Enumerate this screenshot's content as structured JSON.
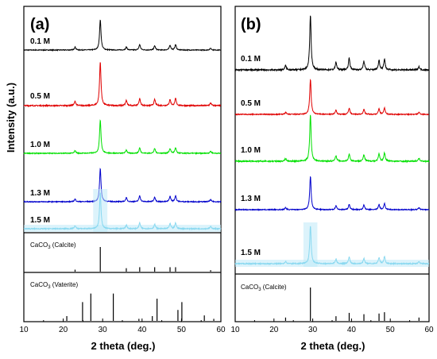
{
  "figure": {
    "ylabel": "Intensity (a.u.)",
    "xlabel": "2 theta (deg.)"
  },
  "chart_data": [
    {
      "type": "line",
      "panel": "(a)",
      "xlim": [
        10,
        60
      ],
      "xticks": [
        "10",
        "20",
        "30",
        "40",
        "50",
        "60"
      ],
      "xlabel": "2 theta (deg.)",
      "ylabel": "Intensity (a.u.)",
      "series": [
        {
          "name": "0.1 M",
          "color": "#000000",
          "peaks": [
            [
              23.0,
              0.1
            ],
            [
              29.4,
              1.0
            ],
            [
              36.0,
              0.1
            ],
            [
              39.4,
              0.18
            ],
            [
              43.2,
              0.14
            ],
            [
              47.1,
              0.16
            ],
            [
              48.5,
              0.18
            ],
            [
              57.4,
              0.06
            ]
          ]
        },
        {
          "name": "0.5 M",
          "color": "#e00000",
          "peaks": [
            [
              23.0,
              0.1
            ],
            [
              29.4,
              1.0
            ],
            [
              36.0,
              0.12
            ],
            [
              39.4,
              0.16
            ],
            [
              43.2,
              0.14
            ],
            [
              47.1,
              0.14
            ],
            [
              48.5,
              0.16
            ],
            [
              57.4,
              0.06
            ]
          ]
        },
        {
          "name": "1.0 M",
          "color": "#00e000",
          "peaks": [
            [
              23.0,
              0.08
            ],
            [
              29.4,
              1.0
            ],
            [
              36.0,
              0.1
            ],
            [
              39.4,
              0.16
            ],
            [
              43.2,
              0.14
            ],
            [
              47.1,
              0.14
            ],
            [
              48.5,
              0.16
            ],
            [
              57.4,
              0.06
            ]
          ]
        },
        {
          "name": "1.3 M",
          "color": "#0000cc",
          "peaks": [
            [
              23.0,
              0.08
            ],
            [
              29.4,
              1.0
            ],
            [
              36.0,
              0.12
            ],
            [
              39.4,
              0.18
            ],
            [
              43.2,
              0.14
            ],
            [
              47.1,
              0.16
            ],
            [
              48.5,
              0.18
            ],
            [
              57.4,
              0.06
            ]
          ]
        },
        {
          "name": "1.5 M",
          "color": "#88d8f0",
          "peaks": [
            [
              23.0,
              0.08
            ],
            [
              29.4,
              1.0
            ],
            [
              36.0,
              0.1
            ],
            [
              39.4,
              0.16
            ],
            [
              43.2,
              0.12
            ],
            [
              47.1,
              0.14
            ],
            [
              48.5,
              0.16
            ],
            [
              57.4,
              0.06
            ]
          ]
        }
      ],
      "references": [
        {
          "label": "CaCO3 (Calcite)",
          "lines": [
            [
              23.0,
              0.08
            ],
            [
              29.4,
              1.0
            ],
            [
              36.0,
              0.14
            ],
            [
              39.4,
              0.18
            ],
            [
              43.2,
              0.18
            ],
            [
              47.1,
              0.18
            ],
            [
              48.5,
              0.18
            ],
            [
              57.4,
              0.06
            ]
          ]
        },
        {
          "label": "CaCO3 (Vaterite)",
          "lines": [
            [
              20.9,
              0.14
            ],
            [
              24.9,
              0.55
            ],
            [
              27.0,
              0.8
            ],
            [
              32.7,
              0.8
            ],
            [
              39.2,
              0.06
            ],
            [
              42.6,
              0.14
            ],
            [
              43.8,
              0.65
            ],
            [
              49.1,
              0.32
            ],
            [
              50.1,
              0.55
            ],
            [
              55.8,
              0.16
            ],
            [
              58.2,
              0.06
            ]
          ]
        }
      ]
    },
    {
      "type": "line",
      "panel": "(b)",
      "xlim": [
        10,
        60
      ],
      "xticks": [
        "10",
        "20",
        "30",
        "40",
        "50",
        "60"
      ],
      "xlabel": "2 theta (deg.)",
      "series": [
        {
          "name": "0.1 M",
          "color": "#000000",
          "peaks": [
            [
              23.0,
              0.08
            ],
            [
              29.4,
              1.0
            ],
            [
              36.0,
              0.14
            ],
            [
              39.4,
              0.22
            ],
            [
              43.2,
              0.16
            ],
            [
              47.1,
              0.18
            ],
            [
              48.5,
              0.2
            ],
            [
              57.4,
              0.06
            ]
          ]
        },
        {
          "name": "0.5 M",
          "color": "#e00000",
          "peaks": [
            [
              23.0,
              0.06
            ],
            [
              29.4,
              1.0
            ],
            [
              36.0,
              0.12
            ],
            [
              39.4,
              0.18
            ],
            [
              43.2,
              0.14
            ],
            [
              47.1,
              0.16
            ],
            [
              48.5,
              0.18
            ],
            [
              57.4,
              0.06
            ]
          ]
        },
        {
          "name": "1.0 M",
          "color": "#00e000",
          "peaks": [
            [
              23.0,
              0.06
            ],
            [
              29.4,
              1.0
            ],
            [
              36.0,
              0.12
            ],
            [
              39.4,
              0.16
            ],
            [
              43.2,
              0.14
            ],
            [
              47.1,
              0.16
            ],
            [
              48.5,
              0.18
            ],
            [
              57.4,
              0.06
            ]
          ]
        },
        {
          "name": "1.3 M",
          "color": "#0000cc",
          "peaks": [
            [
              23.0,
              0.06
            ],
            [
              29.4,
              1.0
            ],
            [
              36.0,
              0.12
            ],
            [
              39.4,
              0.16
            ],
            [
              43.2,
              0.14
            ],
            [
              47.1,
              0.16
            ],
            [
              48.5,
              0.18
            ],
            [
              57.4,
              0.06
            ]
          ]
        },
        {
          "name": "1.5 M",
          "color": "#88d8f0",
          "peaks": [
            [
              23.0,
              0.06
            ],
            [
              29.4,
              1.0
            ],
            [
              36.0,
              0.12
            ],
            [
              39.4,
              0.18
            ],
            [
              43.2,
              0.14
            ],
            [
              47.1,
              0.16
            ],
            [
              48.5,
              0.18
            ],
            [
              57.4,
              0.06
            ]
          ]
        }
      ],
      "references": [
        {
          "label": "CaCO3 (Calcite)",
          "lines": [
            [
              23.0,
              0.1
            ],
            [
              29.4,
              1.0
            ],
            [
              36.0,
              0.14
            ],
            [
              39.4,
              0.24
            ],
            [
              43.2,
              0.2
            ],
            [
              47.1,
              0.22
            ],
            [
              48.5,
              0.26
            ],
            [
              57.4,
              0.1
            ]
          ]
        }
      ]
    }
  ]
}
